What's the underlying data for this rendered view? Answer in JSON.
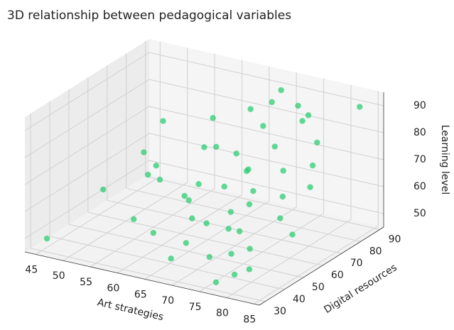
{
  "chart_data": {
    "type": "scatter3d",
    "title": "3D relationship between pedagogical variables",
    "xlabel": "Art strategies",
    "ylabel": "Digital resources",
    "zlabel": "Learning level",
    "color": "#2ecc71",
    "x": [
      48,
      52,
      55,
      58,
      60,
      62,
      63,
      65,
      66,
      67,
      68,
      69,
      70,
      70,
      71,
      72,
      72,
      73,
      74,
      75,
      75,
      76,
      77,
      78,
      78,
      79,
      80,
      80,
      81,
      82,
      83,
      84,
      57,
      61,
      64,
      66,
      68,
      71,
      73,
      76,
      79,
      54,
      59,
      63,
      67,
      70,
      74,
      77,
      46,
      50
    ],
    "y": [
      85,
      70,
      55,
      78,
      62,
      40,
      88,
      50,
      72,
      35,
      60,
      82,
      45,
      66,
      90,
      52,
      75,
      38,
      58,
      84,
      48,
      68,
      30,
      62,
      80,
      42,
      55,
      72,
      36,
      65,
      88,
      50,
      44,
      74,
      58,
      86,
      40,
      64,
      48,
      78,
      34,
      60,
      52,
      70,
      46,
      84,
      56,
      38,
      30,
      48
    ],
    "z": [
      70,
      62,
      75,
      68,
      58,
      55,
      80,
      64,
      72,
      50,
      66,
      88,
      60,
      70,
      84,
      62,
      76,
      52,
      68,
      85,
      58,
      72,
      48,
      66,
      78,
      56,
      62,
      74,
      52,
      70,
      90,
      60,
      56,
      82,
      66,
      76,
      54,
      72,
      58,
      86,
      50,
      64,
      68,
      74,
      60,
      92,
      64,
      55,
      50,
      62
    ],
    "xlim": [
      43,
      86
    ],
    "ylim": [
      27,
      92
    ],
    "zlim": [
      45,
      95
    ],
    "xticks": [
      45,
      50,
      55,
      60,
      65,
      70,
      75,
      80,
      85
    ],
    "yticks": [
      30,
      40,
      50,
      60,
      70,
      80,
      90
    ],
    "zticks": [
      50,
      60,
      70,
      80,
      90
    ],
    "grid": true
  }
}
